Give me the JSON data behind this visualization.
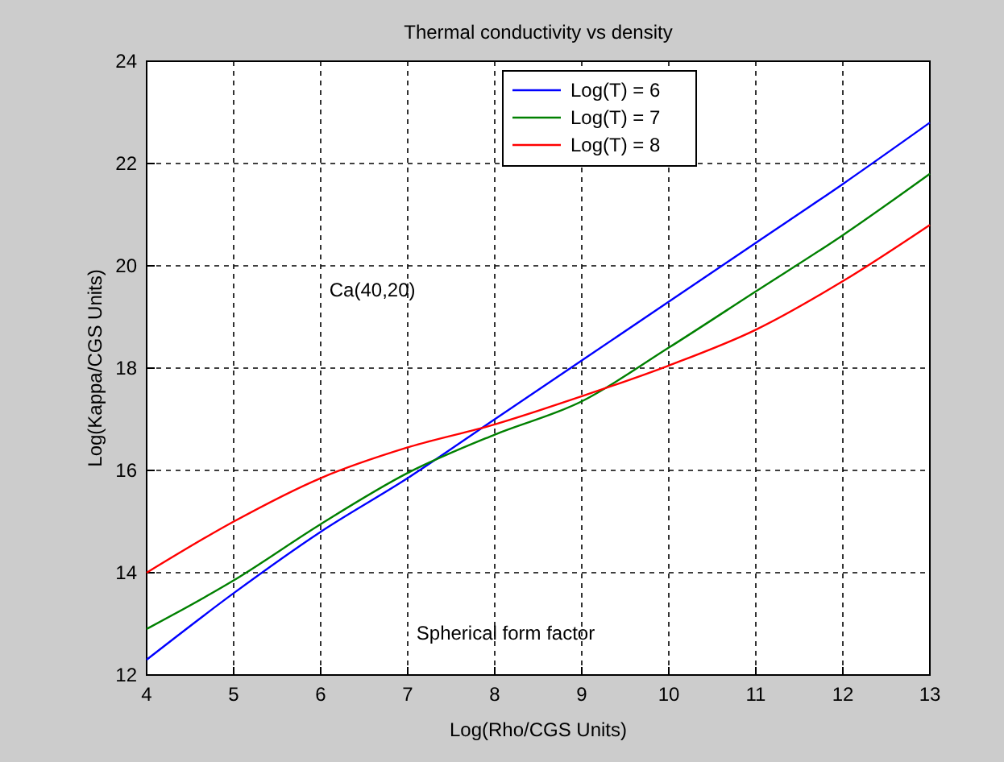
{
  "chart_data": {
    "type": "line",
    "title": "Thermal conductivity vs density",
    "xlabel": "Log(Rho/CGS Units)",
    "ylabel": "Log(Kappa/CGS Units)",
    "x": [
      4,
      5,
      6,
      7,
      8,
      9,
      10,
      11,
      12,
      13
    ],
    "series": [
      {
        "name": "Log(T) = 6",
        "color": "#0000ff",
        "values": [
          12.3,
          13.6,
          14.8,
          15.85,
          17.0,
          18.15,
          19.3,
          20.45,
          21.6,
          22.8
        ]
      },
      {
        "name": "Log(T) = 7",
        "color": "#008000",
        "values": [
          12.9,
          13.85,
          14.95,
          15.95,
          16.7,
          17.35,
          18.4,
          19.5,
          20.6,
          21.8
        ]
      },
      {
        "name": "Log(T) = 8",
        "color": "#ff0000",
        "values": [
          14.0,
          15.0,
          15.85,
          16.45,
          16.9,
          17.45,
          18.05,
          18.75,
          19.7,
          20.8
        ]
      }
    ],
    "xlim": [
      4,
      13
    ],
    "xticks": [
      4,
      5,
      6,
      7,
      8,
      9,
      10,
      11,
      12,
      13
    ],
    "ylim": [
      12,
      24
    ],
    "yticks": [
      12,
      14,
      16,
      18,
      20,
      22,
      24
    ],
    "grid": true,
    "legend": "top right",
    "line_style": "solid",
    "marker": "none",
    "annotations": [
      "Ca(40,20)",
      "Spherical form factor"
    ]
  }
}
